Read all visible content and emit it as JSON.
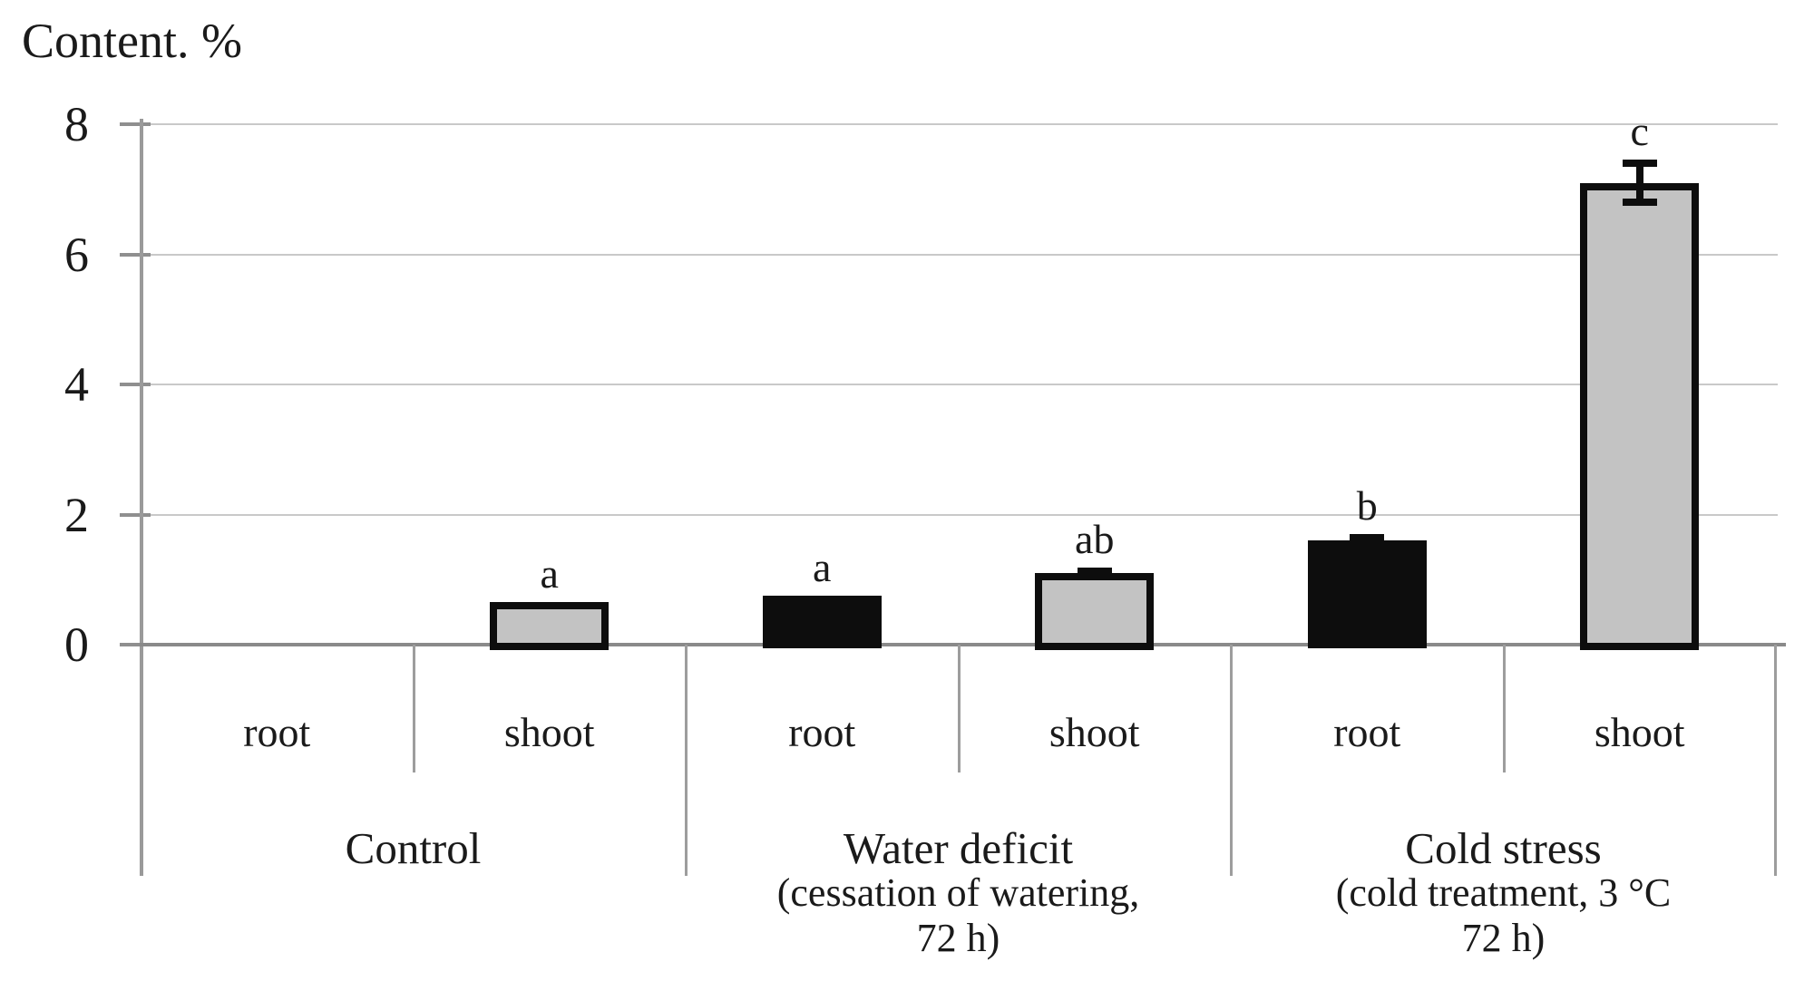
{
  "title": "Content. %",
  "chart_data": {
    "type": "bar",
    "title": "",
    "ylabel": "Content. %",
    "xlabel": "",
    "ylim": [
      0,
      8
    ],
    "yticks": [
      0,
      2,
      4,
      6,
      8
    ],
    "grid": true,
    "legend": "none",
    "bar_styles_note": "shoot bars are gray with thick black outline, root bars are solid black",
    "groups": [
      {
        "label_lines": [
          "Control"
        ],
        "bars": [
          {
            "tissue": "root",
            "value": 0,
            "error": null,
            "letter": null,
            "style": "none"
          },
          {
            "tissue": "shoot",
            "value": 0.65,
            "error": null,
            "letter": "a",
            "style": "gray-outlined"
          }
        ]
      },
      {
        "label_lines": [
          "Water deficit",
          "(cessation of watering,",
          "72 h)"
        ],
        "bars": [
          {
            "tissue": "root",
            "value": 0.75,
            "error": null,
            "letter": "a",
            "style": "black"
          },
          {
            "tissue": "shoot",
            "value": 1.1,
            "error": 0.08,
            "letter": "ab",
            "style": "gray-outlined"
          }
        ]
      },
      {
        "label_lines": [
          "Cold stress",
          "(cold treatment, 3 °C",
          "72 h)"
        ],
        "bars": [
          {
            "tissue": "root",
            "value": 1.6,
            "error": 0.1,
            "letter": "b",
            "style": "black"
          },
          {
            "tissue": "shoot",
            "value": 7.1,
            "error": 0.35,
            "letter": "c",
            "style": "gray-outlined"
          }
        ]
      }
    ],
    "colors": {
      "gray_fill": "#c3c3c3",
      "bar_outline": "#0d0d0d",
      "black_fill": "#0d0d0d",
      "gridline": "#c9c9c9",
      "axis": "#9a9a9a",
      "baseline": "#8a8a8a",
      "text": "#1a1a1a"
    }
  }
}
